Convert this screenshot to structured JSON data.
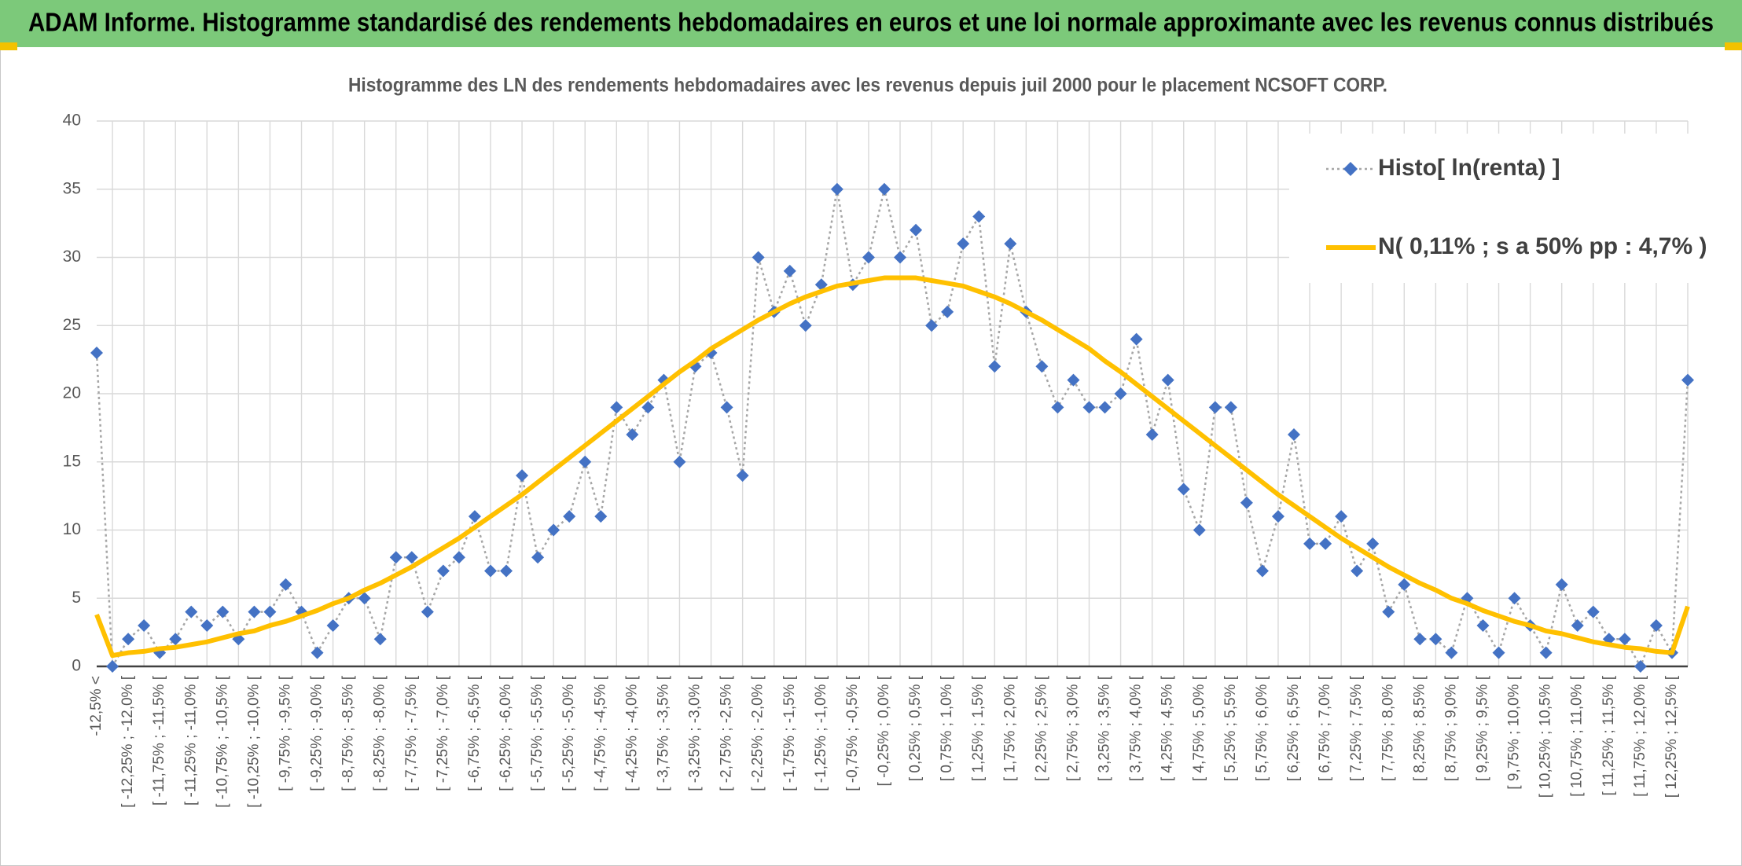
{
  "chart_data": {
    "type": "line",
    "title": "ADAM Informe. Histogramme standardisé des rendements hebdomadaires en euros et une loi normale approximante avec les revenus connus distribués",
    "subtitle": "Histogramme des LN des rendements hebdomadaires avec les revenus depuis juil 2000 pour le placement NCSOFT CORP.",
    "categories": [
      "-12,5% <",
      null,
      "[ -12,25% ; -12,0% [",
      null,
      "[ -11,75% ; -11,5% [",
      null,
      "[ -11,25% ; -11,0% [",
      null,
      "[ -10,75% ; -10,5% [",
      null,
      "[ -10,25% ; -10,0% [",
      null,
      "[ -9,75% ; -9,5% [",
      null,
      "[ -9,25% ; -9,0% [",
      null,
      "[ -8,75% ; -8,5% [",
      null,
      "[ -8,25% ; -8,0% [",
      null,
      "[ -7,75% ; -7,5% [",
      null,
      "[ -7,25% ; -7,0% [",
      null,
      "[ -6,75% ; -6,5% [",
      null,
      "[ -6,25% ; -6,0% [",
      null,
      "[ -5,75% ; -5,5% [",
      null,
      "[ -5,25% ; -5,0% [",
      null,
      "[ -4,75% ; -4,5% [",
      null,
      "[ -4,25% ; -4,0% [",
      null,
      "[ -3,75% ; -3,5% [",
      null,
      "[ -3,25% ; -3,0% [",
      null,
      "[ -2,75% ; -2,5% [",
      null,
      "[ -2,25% ; -2,0% [",
      null,
      "[ -1,75% ; -1,5% [",
      null,
      "[ -1,25% ; -1,0% [",
      null,
      "[ -0,75% ; -0,5% [",
      null,
      "[ -0,25% ; 0,0% [",
      null,
      "[ 0,25% ; 0,5% [",
      null,
      "[ 0,75% ; 1,0% [",
      null,
      "[ 1,25% ; 1,5% [",
      null,
      "[ 1,75% ; 2,0% [",
      null,
      "[ 2,25% ; 2,5% [",
      null,
      "[ 2,75% ; 3,0% [",
      null,
      "[ 3,25% ; 3,5% [",
      null,
      "[ 3,75% ; 4,0% [",
      null,
      "[ 4,25% ; 4,5% [",
      null,
      "[ 4,75% ; 5,0% [",
      null,
      "[ 5,25% ; 5,5% [",
      null,
      "[ 5,75% ; 6,0% [",
      null,
      "[ 6,25% ; 6,5% [",
      null,
      "[ 6,75% ; 7,0% [",
      null,
      "[ 7,25% ; 7,5% [",
      null,
      "[ 7,75% ; 8,0% [",
      null,
      "[ 8,25% ; 8,5% [",
      null,
      "[ 8,75% ; 9,0% [",
      null,
      "[ 9,25% ; 9,5% [",
      null,
      "[ 9,75% ; 10,0% [",
      null,
      "[ 10,25% ; 10,5% [",
      null,
      "[ 10,75% ; 11,0% [",
      null,
      "[ 11,25% ; 11,5% [",
      null,
      "[ 11,75% ; 12,0% [",
      null,
      "[ 12,25% ; 12,5% [",
      null
    ],
    "series": [
      {
        "name": "Histo[ ln(renta) ]",
        "color": "#4472c4",
        "line_color": "#a6a6a6",
        "line_style": "dotted",
        "marker": "diamond",
        "values": [
          23,
          0,
          2,
          3,
          1,
          2,
          4,
          3,
          4,
          2,
          4,
          4,
          6,
          4,
          1,
          3,
          5,
          5,
          2,
          8,
          8,
          4,
          7,
          8,
          11,
          7,
          7,
          14,
          8,
          10,
          11,
          15,
          11,
          19,
          17,
          19,
          21,
          15,
          22,
          23,
          19,
          14,
          30,
          26,
          29,
          25,
          28,
          35,
          28,
          30,
          35,
          30,
          32,
          25,
          26,
          31,
          33,
          22,
          31,
          26,
          22,
          19,
          21,
          19,
          19,
          20,
          24,
          17,
          21,
          13,
          10,
          19,
          19,
          12,
          7,
          11,
          17,
          9,
          9,
          11,
          7,
          9,
          4,
          6,
          2,
          2,
          1,
          5,
          3,
          1,
          5,
          3,
          1,
          6,
          3,
          4,
          2,
          2,
          0,
          3,
          1,
          21
        ]
      },
      {
        "name": "N( 0,11% ; s a 50% pp : 4,7% )",
        "color": "#ffc000",
        "line_style": "solid",
        "marker": "none",
        "values": [
          3.8,
          0.8,
          1.0,
          1.1,
          1.3,
          1.4,
          1.6,
          1.8,
          2.1,
          2.4,
          2.6,
          3.0,
          3.3,
          3.7,
          4.1,
          4.6,
          5.0,
          5.6,
          6.1,
          6.7,
          7.3,
          8.0,
          8.7,
          9.4,
          10.2,
          11.0,
          11.8,
          12.6,
          13.5,
          14.4,
          15.3,
          16.2,
          17.1,
          18.0,
          18.9,
          19.8,
          20.7,
          21.6,
          22.4,
          23.3,
          24.0,
          24.7,
          25.4,
          26.0,
          26.6,
          27.1,
          27.5,
          27.9,
          28.1,
          28.3,
          28.5,
          28.5,
          28.5,
          28.3,
          28.1,
          27.9,
          27.5,
          27.1,
          26.6,
          26.0,
          25.4,
          24.7,
          24.0,
          23.3,
          22.4,
          21.6,
          20.7,
          19.8,
          18.9,
          18.0,
          17.1,
          16.2,
          15.3,
          14.4,
          13.5,
          12.6,
          11.8,
          11.0,
          10.2,
          9.4,
          8.7,
          8.0,
          7.3,
          6.7,
          6.1,
          5.6,
          5.0,
          4.6,
          4.1,
          3.7,
          3.3,
          3.0,
          2.6,
          2.4,
          2.1,
          1.8,
          1.6,
          1.4,
          1.3,
          1.1,
          1.0,
          4.4
        ]
      }
    ],
    "ylim": [
      0,
      40
    ],
    "yticks": [
      0,
      5,
      10,
      15,
      20,
      25,
      30,
      35,
      40
    ],
    "grid": true,
    "legend": "upper right"
  }
}
